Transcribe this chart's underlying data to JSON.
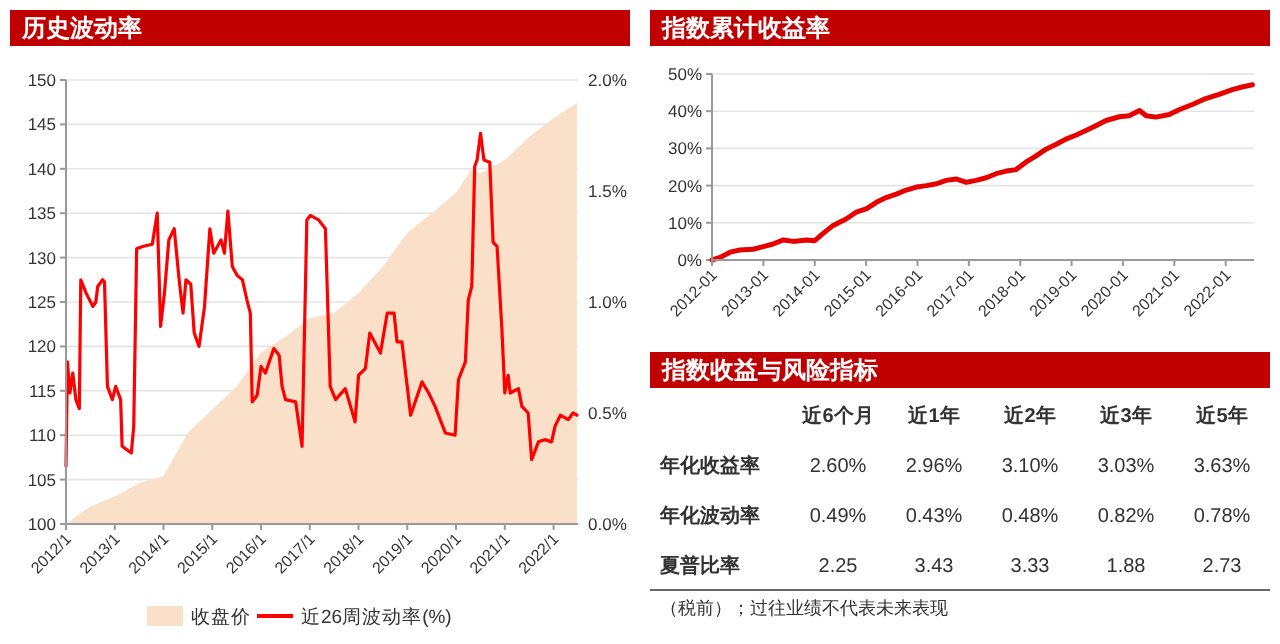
{
  "chart_data": [
    {
      "type": "line",
      "title": "历史波动率",
      "xlim": [
        "2012-01-01",
        "2022-07-03"
      ],
      "xticks": [
        {
          "value": "2012-01",
          "label": "2012/1"
        },
        {
          "value": "2013-01",
          "label": "2013/1"
        },
        {
          "value": "2014-01",
          "label": "2014/1"
        },
        {
          "value": "2015-01",
          "label": "2015/1"
        },
        {
          "value": "2016-01",
          "label": "2016/1"
        },
        {
          "value": "2017-01",
          "label": "2017/1"
        },
        {
          "value": "2018-01",
          "label": "2018/1"
        },
        {
          "value": "2019-01",
          "label": "2019/1"
        },
        {
          "value": "2020-01",
          "label": "2020/1"
        },
        {
          "value": "2021-01",
          "label": "2021/1"
        },
        {
          "value": "2022-01",
          "label": "2022/1"
        }
      ],
      "ylim": [
        100,
        150
      ],
      "yticks": [
        100,
        105,
        110,
        115,
        120,
        125,
        130,
        135,
        140,
        145,
        150
      ],
      "y2lim": [
        0,
        2
      ],
      "y2ticks": [
        {
          "value": 0,
          "label": "0.0%"
        },
        {
          "value": 0.5,
          "label": "0.5%"
        },
        {
          "value": 1,
          "label": "1.0%"
        },
        {
          "value": 1.5,
          "label": "1.5%"
        },
        {
          "value": 2,
          "label": "2.0%"
        }
      ],
      "grid": "y",
      "legend": "bottom",
      "series": [
        {
          "type": "area",
          "name": "收盘价",
          "color": "#fbe0c9",
          "x": [
            "2012-01-01",
            "2012-07-03",
            "2013-01-01",
            "2013-07-03",
            "2014-01-01",
            "2014-07-03",
            "2015-01-01",
            "2015-07-03",
            "2016-01-01",
            "2016-07-03",
            "2017-01-01",
            "2017-07-03",
            "2018-01-01",
            "2018-07-03",
            "2019-01-01",
            "2019-07-03",
            "2020-01-01",
            "2020-04-21",
            "2020-07-03",
            "2021-01-01",
            "2021-07-03",
            "2022-01-01",
            "2022-06-25"
          ],
          "values": [
            100,
            102,
            103.1,
            104.6,
            105.4,
            110.3,
            112.9,
            115.5,
            119.3,
            121.1,
            123.2,
            123.8,
            126,
            129,
            132.8,
            135,
            137.3,
            139.9,
            139.5,
            141,
            143.6,
            145.7,
            147.4
          ]
        },
        {
          "type": "line",
          "name": "近26周波动率(%)",
          "color": "#ff0000",
          "axis": "y2",
          "x": [
            "2012-01-01",
            "2012-01-12",
            "2012-01-30",
            "2012-02-21",
            "2012-03-15",
            "2012-04-10",
            "2012-04-21",
            "2012-05-31",
            "2012-07-21",
            "2012-08-12",
            "2012-08-26",
            "2012-10-02",
            "2012-10-16",
            "2012-11-07",
            "2012-12-14",
            "2013-01-08",
            "2013-02-14",
            "2013-02-25",
            "2013-05-05",
            "2013-05-23",
            "2013-06-14",
            "2013-07-28",
            "2013-10-09",
            "2013-11-15",
            "2013-12-10",
            "2014-01-08",
            "2014-02-10",
            "2014-03-22",
            "2014-04-28",
            "2014-05-27",
            "2014-06-18",
            "2014-07-24",
            "2014-08-19",
            "2014-09-24",
            "2014-11-04",
            "2014-12-14",
            "2015-01-12",
            "2015-03-08",
            "2015-04-02",
            "2015-04-28",
            "2015-05-31",
            "2015-07-06",
            "2015-08-15",
            "2015-09-17",
            "2015-10-13",
            "2015-10-27",
            "2015-12-03",
            "2016-01-01",
            "2016-02-03",
            "2016-04-06",
            "2016-05-16",
            "2016-06-07",
            "2016-07-03",
            "2016-09-17",
            "2016-11-04",
            "2016-12-10",
            "2017-01-05",
            "2017-03-08",
            "2017-04-28",
            "2017-06-03",
            "2017-07-13",
            "2017-09-24",
            "2017-12-06",
            "2018-01-01",
            "2018-02-21",
            "2018-03-26",
            "2018-06-14",
            "2018-08-04",
            "2018-09-24",
            "2018-10-16",
            "2018-11-22",
            "2019-01-26",
            "2019-04-21",
            "2019-06-10",
            "2019-07-28",
            "2019-10-13",
            "2019-12-25",
            "2020-01-19",
            "2020-03-11",
            "2020-04-02",
            "2020-04-28",
            "2020-05-20",
            "2020-06-07",
            "2020-07-03",
            "2020-07-28",
            "2020-09-10",
            "2020-10-05",
            "2020-11-04",
            "2020-12-10",
            "2021-01-01",
            "2021-01-26",
            "2021-02-10",
            "2021-04-13",
            "2021-05-09",
            "2021-06-25",
            "2021-07-21",
            "2021-09-10",
            "2021-10-27",
            "2021-12-17",
            "2022-01-12",
            "2022-02-21",
            "2022-04-21",
            "2022-05-27",
            "2022-06-25"
          ],
          "values": [
            0.26,
            0.73,
            0.59,
            0.68,
            0.56,
            0.52,
            1.1,
            1.04,
            0.98,
            1.0,
            1.07,
            1.1,
            1.09,
            0.62,
            0.56,
            0.62,
            0.56,
            0.35,
            0.32,
            0.44,
            1.24,
            1.25,
            1.26,
            1.4,
            0.89,
            1.04,
            1.28,
            1.33,
            1.1,
            0.95,
            1.1,
            1.08,
            0.86,
            0.8,
            0.98,
            1.33,
            1.22,
            1.28,
            1.22,
            1.41,
            1.16,
            1.12,
            1.1,
            1.01,
            0.95,
            0.55,
            0.58,
            0.71,
            0.68,
            0.79,
            0.76,
            0.62,
            0.56,
            0.55,
            0.35,
            1.37,
            1.39,
            1.37,
            1.33,
            0.62,
            0.56,
            0.61,
            0.46,
            0.67,
            0.7,
            0.86,
            0.77,
            0.95,
            0.95,
            0.82,
            0.82,
            0.49,
            0.64,
            0.59,
            0.53,
            0.41,
            0.4,
            0.65,
            0.73,
            1.01,
            1.07,
            1.61,
            1.64,
            1.76,
            1.64,
            1.63,
            1.27,
            1.25,
            0.88,
            0.59,
            0.67,
            0.59,
            0.61,
            0.53,
            0.5,
            0.29,
            0.37,
            0.38,
            0.37,
            0.44,
            0.49,
            0.47,
            0.5,
            0.49
          ]
        }
      ]
    },
    {
      "type": "line",
      "title": "指数累计收益率",
      "xlim": [
        "2012-01-01",
        "2022-07-21"
      ],
      "xticks": [
        {
          "value": "2012-01",
          "label": "2012-01"
        },
        {
          "value": "2013-01",
          "label": "2013-01"
        },
        {
          "value": "2014-01",
          "label": "2014-01"
        },
        {
          "value": "2015-01",
          "label": "2015-01"
        },
        {
          "value": "2016-01",
          "label": "2016-01"
        },
        {
          "value": "2017-01",
          "label": "2017-01"
        },
        {
          "value": "2018-01",
          "label": "2018-01"
        },
        {
          "value": "2019-01",
          "label": "2019-01"
        },
        {
          "value": "2020-01",
          "label": "2020-01"
        },
        {
          "value": "2021-01",
          "label": "2021-01"
        },
        {
          "value": "2022-01",
          "label": "2022-01"
        }
      ],
      "ylim": [
        0,
        50
      ],
      "yticks": [
        {
          "value": 0,
          "label": "0%"
        },
        {
          "value": 10,
          "label": "10%"
        },
        {
          "value": 20,
          "label": "20%"
        },
        {
          "value": 30,
          "label": "30%"
        },
        {
          "value": 40,
          "label": "40%"
        },
        {
          "value": 50,
          "label": "50%"
        }
      ],
      "grid": "y",
      "series": [
        {
          "color": "#e60000",
          "x": [
            "2012-01-01",
            "2012-02-28",
            "2012-05-09",
            "2012-07-17",
            "2012-10-20",
            "2013-01-01",
            "2013-03-11",
            "2013-05-23",
            "2013-08-01",
            "2013-11-04",
            "2014-01-01",
            "2014-02-28",
            "2014-05-12",
            "2014-08-15",
            "2014-10-24",
            "2015-01-05",
            "2015-03-15",
            "2015-05-23",
            "2015-08-04",
            "2015-10-13",
            "2015-12-25",
            "2016-03-04",
            "2016-05-16",
            "2016-07-24",
            "2016-10-02",
            "2016-12-14",
            "2017-02-21",
            "2017-05-05",
            "2017-07-13",
            "2017-09-24",
            "2017-12-03",
            "2018-02-10",
            "2018-04-24",
            "2018-07-03",
            "2018-09-14",
            "2018-11-22",
            "2019-02-03",
            "2019-04-13",
            "2019-06-22",
            "2019-09-03",
            "2019-12-06",
            "2020-02-14",
            "2020-04-28",
            "2020-06-14",
            "2020-08-23",
            "2020-11-26",
            "2021-02-03",
            "2021-05-09",
            "2021-08-12",
            "2021-11-15",
            "2022-02-17",
            "2022-04-28",
            "2022-07-10"
          ],
          "values": [
            0,
            0.7,
            2.1,
            2.7,
            2.9,
            3.6,
            4.3,
            5.4,
            5.0,
            5.4,
            5.2,
            7.1,
            9.3,
            11.1,
            12.9,
            13.8,
            15.5,
            16.8,
            17.7,
            18.8,
            19.6,
            20.0,
            20.5,
            21.4,
            21.8,
            20.9,
            21.4,
            22.1,
            23.2,
            23.9,
            24.3,
            26.3,
            28.0,
            29.8,
            31.1,
            32.5,
            33.6,
            34.8,
            36.1,
            37.5,
            38.5,
            38.8,
            40.2,
            38.8,
            38.4,
            39.1,
            40.4,
            41.8,
            43.4,
            44.5,
            45.8,
            46.5,
            47.1
          ]
        }
      ]
    },
    {
      "type": "other",
      "title": "指数收益与风险指标",
      "categories": [
        "近6个月",
        "近1年",
        "近2年",
        "近3年",
        "近5年"
      ],
      "y_categories": [
        "年化收益率",
        "年化波动率",
        "夏普比率"
      ],
      "cell_labels": [
        [
          "2.60%",
          "2.96%",
          "3.10%",
          "3.03%",
          "3.63%"
        ],
        [
          "0.49%",
          "0.43%",
          "0.48%",
          "0.82%",
          "0.78%"
        ],
        [
          "2.25",
          "3.43",
          "3.33",
          "1.88",
          "2.73"
        ]
      ],
      "annotations": [
        "（税前）；过往业绩不代表未来表现"
      ]
    }
  ]
}
